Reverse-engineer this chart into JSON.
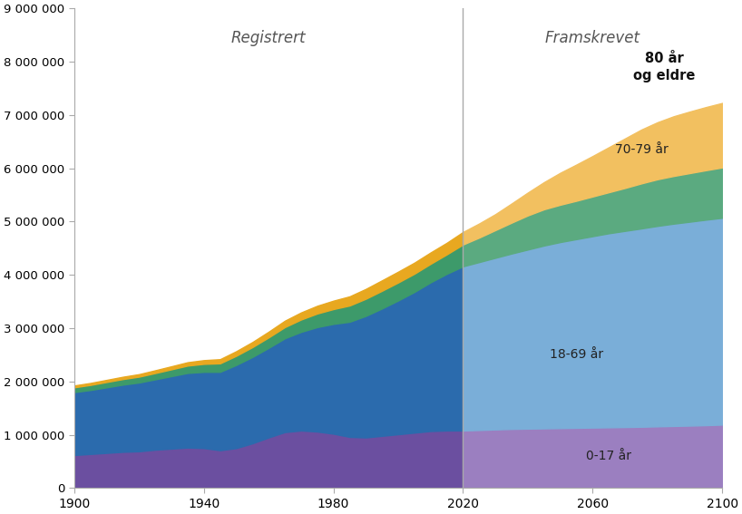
{
  "title_registrert": "Registrert",
  "title_framskrevet": "Framskrevet",
  "divider_year": 2020,
  "xlim": [
    1900,
    2100
  ],
  "ylim": [
    0,
    9000000
  ],
  "yticks": [
    0,
    1000000,
    2000000,
    3000000,
    4000000,
    5000000,
    6000000,
    7000000,
    8000000,
    9000000
  ],
  "ytick_labels": [
    "0",
    "1 000 000",
    "2 000 000",
    "3 000 000",
    "4 000 000",
    "5 000 000",
    "6 000 000",
    "7 000 000",
    "8 000 000",
    "9 000 000"
  ],
  "xtick_labels": [
    "1900",
    "1940",
    "1980",
    "2020",
    "2060",
    "2100"
  ],
  "xticks": [
    1900,
    1940,
    1980,
    2020,
    2060,
    2100
  ],
  "colors": {
    "age_0_17": "#6B4FA0",
    "age_18_69": "#2B6BAD",
    "age_70_79": "#3D9A6A",
    "age_80_plus": "#E8A820",
    "age_0_17_future": "#9B7FC0",
    "age_18_69_future": "#7AAED8",
    "age_70_79_future": "#5BAA80",
    "age_80_plus_future": "#F2C060",
    "divider": "#aaaaaa"
  },
  "labels": {
    "age_0_17": "0-17 år",
    "age_18_69": "18-69 år",
    "age_70_79": "70-79 år",
    "age_80_plus": "80 år\nog eldre"
  },
  "historical_years": [
    1900,
    1905,
    1910,
    1915,
    1920,
    1925,
    1930,
    1935,
    1940,
    1945,
    1950,
    1955,
    1960,
    1965,
    1970,
    1975,
    1980,
    1985,
    1990,
    1995,
    2000,
    2005,
    2010,
    2015,
    2020
  ],
  "hist_0_17": [
    620000,
    640000,
    660000,
    680000,
    690000,
    720000,
    740000,
    760000,
    750000,
    710000,
    750000,
    840000,
    950000,
    1050000,
    1080000,
    1060000,
    1020000,
    960000,
    950000,
    980000,
    1010000,
    1040000,
    1070000,
    1080000,
    1080000
  ],
  "hist_18_69": [
    1180000,
    1200000,
    1230000,
    1260000,
    1290000,
    1320000,
    1360000,
    1400000,
    1430000,
    1470000,
    1560000,
    1620000,
    1680000,
    1760000,
    1850000,
    1960000,
    2060000,
    2160000,
    2280000,
    2390000,
    2510000,
    2640000,
    2790000,
    2940000,
    3080000
  ],
  "hist_70_79": [
    90000,
    95000,
    100000,
    105000,
    110000,
    118000,
    128000,
    138000,
    150000,
    160000,
    172000,
    185000,
    197000,
    210000,
    232000,
    255000,
    278000,
    305000,
    322000,
    332000,
    338000,
    342000,
    348000,
    365000,
    410000
  ],
  "hist_80_plus": [
    35000,
    37000,
    40000,
    43000,
    47000,
    52000,
    57000,
    63000,
    70000,
    78000,
    86000,
    95000,
    107000,
    120000,
    133000,
    145000,
    158000,
    172000,
    185000,
    196000,
    203000,
    208000,
    213000,
    218000,
    235000
  ],
  "future_years": [
    2020,
    2025,
    2030,
    2035,
    2040,
    2045,
    2050,
    2055,
    2060,
    2065,
    2070,
    2075,
    2080,
    2085,
    2090,
    2095,
    2100
  ],
  "fut_0_17": [
    1080000,
    1090000,
    1100000,
    1110000,
    1115000,
    1120000,
    1125000,
    1130000,
    1135000,
    1140000,
    1145000,
    1150000,
    1158000,
    1165000,
    1172000,
    1180000,
    1190000
  ],
  "fut_18_69": [
    3080000,
    3150000,
    3220000,
    3290000,
    3360000,
    3430000,
    3490000,
    3540000,
    3590000,
    3640000,
    3680000,
    3720000,
    3760000,
    3795000,
    3825000,
    3855000,
    3880000
  ],
  "fut_70_79": [
    410000,
    460000,
    520000,
    580000,
    640000,
    680000,
    700000,
    720000,
    745000,
    770000,
    805000,
    845000,
    875000,
    895000,
    912000,
    928000,
    945000
  ],
  "fut_80_plus": [
    235000,
    265000,
    300000,
    360000,
    430000,
    510000,
    600000,
    680000,
    760000,
    845000,
    930000,
    1010000,
    1070000,
    1120000,
    1155000,
    1185000,
    1210000
  ],
  "background_color": "#ffffff",
  "spine_color": "#aaaaaa",
  "label_text_color": "#222222",
  "label_bold_color": "#111111"
}
